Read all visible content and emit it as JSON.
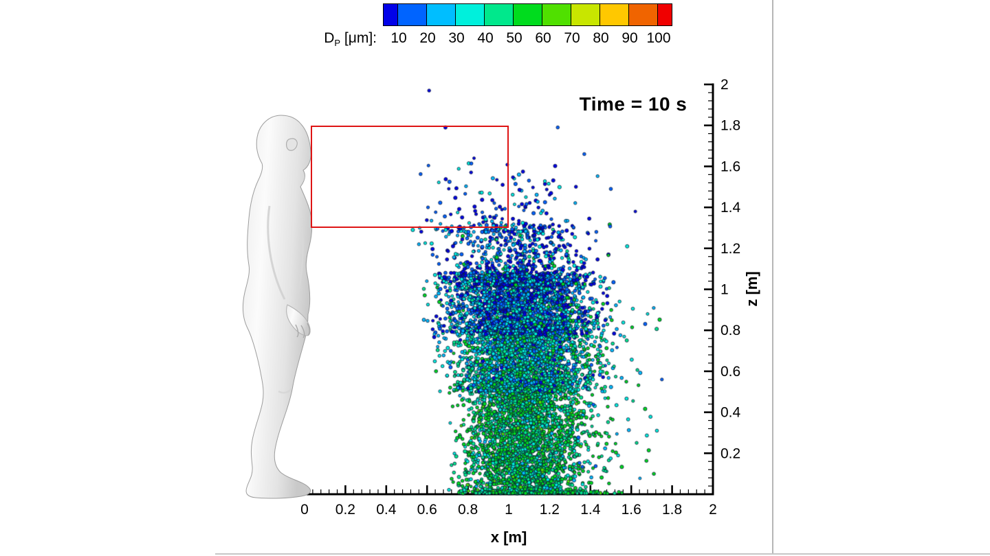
{
  "page": {
    "background": "#ffffff",
    "divider_color": "#b5b5b5"
  },
  "colorbar": {
    "title": {
      "symbol": "D",
      "sub": "P",
      "unit": " [μm]:"
    },
    "tick_labels": [
      "10",
      "20",
      "30",
      "40",
      "50",
      "60",
      "70",
      "80",
      "90",
      "100"
    ],
    "segment_colors": [
      "#0202E8",
      "#0064FF",
      "#00BEFF",
      "#00F0DC",
      "#00E88C",
      "#00DC1E",
      "#50E000",
      "#C8E600",
      "#FFC800",
      "#F06400",
      "#F00000"
    ],
    "outline_color": "#000000"
  },
  "annotations": {
    "time_label": "Time = 10 s"
  },
  "axes": {
    "x": {
      "label": "x [m]",
      "min": 0,
      "max": 2,
      "major_step": 0.2,
      "minor_step": 0.04,
      "tick_labels": [
        "0",
        "0.2",
        "0.4",
        "0.6",
        "0.8",
        "1",
        "1.2",
        "1.4",
        "1.6",
        "1.8",
        "2"
      ]
    },
    "z": {
      "label": "z [m]",
      "min": 0,
      "max": 2,
      "major_step": 0.2,
      "minor_step": 0.04,
      "tick_labels": [
        "0.2",
        "0.4",
        "0.6",
        "0.8",
        "1",
        "1.2",
        "1.4",
        "1.6",
        "1.8",
        "2"
      ]
    }
  },
  "roi_box": {
    "x_range": [
      0.03,
      1.0
    ],
    "z_range": [
      1.3,
      1.8
    ],
    "color": "#DE1414"
  },
  "chart_data": {
    "type": "scatter",
    "title": "",
    "description": "Cough/exhalation droplet cloud at Time = 10 s in front of a standing person; ~8500 particles coloured by diameter DP [um]; plume spans x 0.55-1.75 m, z 0-1.4 m dense core with stragglers up to z 1.97 m; large (green) droplets settled low and on floor, small (blue) droplets suspended higher; red box marks breathing-zone region.",
    "xlabel": "x [m]",
    "ylabel": "z [m]",
    "x_range_m": [
      0,
      2
    ],
    "z_range_m": [
      0,
      2
    ],
    "palette_by_diameter_um": {
      "10": "#0202E8",
      "20": "#0064FF",
      "30": "#00BEFF",
      "40": "#00F0DC",
      "50": "#00E88C",
      "60": "#00DC1E",
      "70": "#50E000",
      "80": "#C8E600",
      "90": "#FFC800",
      "100": "#F06400"
    },
    "particle_outline": "#0A1433",
    "particle_radius_px": 2.3,
    "seed": 1337,
    "clusters": [
      {
        "name": "floor-deposit",
        "count": 300,
        "x": {
          "dist": "gauss",
          "mean": 1.12,
          "sd": 0.18,
          "min": 0.74,
          "max": 1.56
        },
        "z": {
          "dist": "uniform",
          "min": 0.004,
          "max": 0.018
        },
        "colors": {
          "60": 0.55,
          "50": 0.35,
          "70": 0.1
        }
      },
      {
        "name": "lower-core",
        "count": 2700,
        "x": {
          "dist": "gauss",
          "mean": 1.07,
          "sd": 0.145,
          "min": 0.7,
          "max": 1.5
        },
        "z": {
          "dist": "uniform",
          "min": 0.02,
          "max": 0.56
        },
        "colors": {
          "60": 0.46,
          "50": 0.32,
          "40": 0.13,
          "70": 0.05,
          "30": 0.04
        }
      },
      {
        "name": "mid-core",
        "count": 2400,
        "x": {
          "dist": "gauss",
          "mean": 1.07,
          "sd": 0.165,
          "min": 0.63,
          "max": 1.53
        },
        "z": {
          "dist": "uniform",
          "min": 0.5,
          "max": 0.85
        },
        "colors": {
          "40": 0.28,
          "50": 0.24,
          "60": 0.18,
          "30": 0.16,
          "20": 0.09,
          "10": 0.05
        }
      },
      {
        "name": "upper-dense-band",
        "count": 2100,
        "x": {
          "dist": "gauss",
          "mean": 1.05,
          "sd": 0.18,
          "min": 0.58,
          "max": 1.52
        },
        "z": {
          "dist": "uniform",
          "min": 0.78,
          "max": 1.08
        },
        "colors": {
          "10": 0.27,
          "20": 0.27,
          "30": 0.17,
          "40": 0.19,
          "50": 0.06,
          "60": 0.04
        }
      },
      {
        "name": "upper-sparse",
        "count": 750,
        "x": {
          "dist": "gauss",
          "mean": 1.03,
          "sd": 0.19,
          "min": 0.55,
          "max": 1.5
        },
        "z": {
          "dist": "power",
          "min": 1.02,
          "max": 1.32,
          "pow": 1.7
        },
        "colors": {
          "10": 0.34,
          "20": 0.26,
          "30": 0.16,
          "40": 0.17,
          "50": 0.04,
          "60": 0.03
        }
      },
      {
        "name": "top-stragglers",
        "count": 150,
        "x": {
          "dist": "gauss",
          "mean": 1.0,
          "sd": 0.21,
          "min": 0.55,
          "max": 1.52
        },
        "z": {
          "dist": "power",
          "min": 1.28,
          "max": 1.62,
          "pow": 2.2
        },
        "colors": {
          "10": 0.45,
          "20": 0.25,
          "30": 0.15,
          "40": 0.15
        }
      },
      {
        "name": "right-tail",
        "count": 150,
        "x": {
          "dist": "power",
          "min": 1.3,
          "max": 1.74,
          "pow": 2.0
        },
        "z": {
          "dist": "uniform",
          "min": 0.04,
          "max": 0.95
        },
        "colors": {
          "60": 0.35,
          "50": 0.25,
          "40": 0.18,
          "30": 0.12,
          "20": 0.1
        }
      }
    ],
    "outlier_particles": [
      [
        0.61,
        1.97,
        "10"
      ],
      [
        0.69,
        1.79,
        "10"
      ],
      [
        1.24,
        1.79,
        "20"
      ],
      [
        0.83,
        1.64,
        "10"
      ],
      [
        1.37,
        1.66,
        "20"
      ],
      [
        1.05,
        1.56,
        "30"
      ],
      [
        0.97,
        1.51,
        "10"
      ],
      [
        1.5,
        1.49,
        "20"
      ],
      [
        1.62,
        1.38,
        "10"
      ],
      [
        1.75,
        0.56,
        "20"
      ],
      [
        0.53,
        1.29,
        "40"
      ],
      [
        0.56,
        1.22,
        "30"
      ],
      [
        1.58,
        1.21,
        "40"
      ],
      [
        1.68,
        0.88,
        "40"
      ]
    ]
  }
}
